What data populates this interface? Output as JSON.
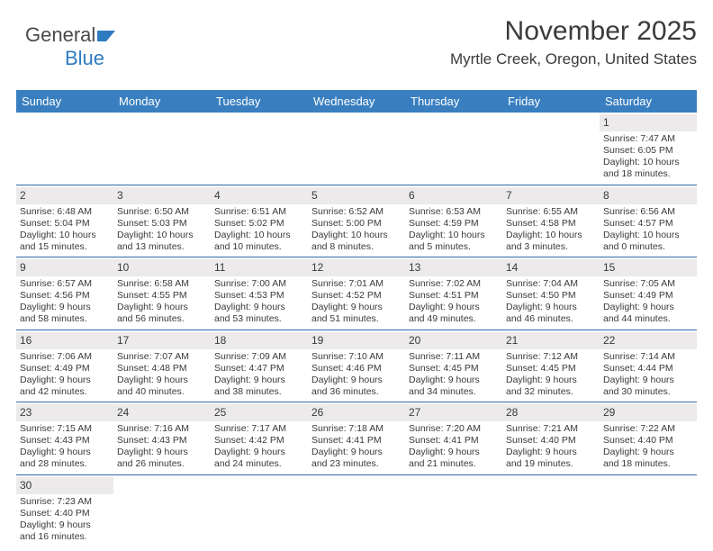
{
  "logo": {
    "text1": "General",
    "text2": "Blue"
  },
  "colors": {
    "header_blue": "#397fc0",
    "border_blue": "#2f6aa8",
    "daynum_bg": "#eceaea",
    "text": "#3a3a3a",
    "logo_blue": "#2f7bbf"
  },
  "title": "November 2025",
  "location": "Myrtle Creek, Oregon, United States",
  "day_labels": [
    "Sunday",
    "Monday",
    "Tuesday",
    "Wednesday",
    "Thursday",
    "Friday",
    "Saturday"
  ],
  "weeks": [
    [
      {
        "empty": true
      },
      {
        "empty": true
      },
      {
        "empty": true
      },
      {
        "empty": true
      },
      {
        "empty": true
      },
      {
        "empty": true
      },
      {
        "n": "1",
        "sr": "Sunrise: 7:47 AM",
        "ss": "Sunset: 6:05 PM",
        "d1": "Daylight: 10 hours",
        "d2": "and 18 minutes."
      }
    ],
    [
      {
        "n": "2",
        "sr": "Sunrise: 6:48 AM",
        "ss": "Sunset: 5:04 PM",
        "d1": "Daylight: 10 hours",
        "d2": "and 15 minutes."
      },
      {
        "n": "3",
        "sr": "Sunrise: 6:50 AM",
        "ss": "Sunset: 5:03 PM",
        "d1": "Daylight: 10 hours",
        "d2": "and 13 minutes."
      },
      {
        "n": "4",
        "sr": "Sunrise: 6:51 AM",
        "ss": "Sunset: 5:02 PM",
        "d1": "Daylight: 10 hours",
        "d2": "and 10 minutes."
      },
      {
        "n": "5",
        "sr": "Sunrise: 6:52 AM",
        "ss": "Sunset: 5:00 PM",
        "d1": "Daylight: 10 hours",
        "d2": "and 8 minutes."
      },
      {
        "n": "6",
        "sr": "Sunrise: 6:53 AM",
        "ss": "Sunset: 4:59 PM",
        "d1": "Daylight: 10 hours",
        "d2": "and 5 minutes."
      },
      {
        "n": "7",
        "sr": "Sunrise: 6:55 AM",
        "ss": "Sunset: 4:58 PM",
        "d1": "Daylight: 10 hours",
        "d2": "and 3 minutes."
      },
      {
        "n": "8",
        "sr": "Sunrise: 6:56 AM",
        "ss": "Sunset: 4:57 PM",
        "d1": "Daylight: 10 hours",
        "d2": "and 0 minutes."
      }
    ],
    [
      {
        "n": "9",
        "sr": "Sunrise: 6:57 AM",
        "ss": "Sunset: 4:56 PM",
        "d1": "Daylight: 9 hours",
        "d2": "and 58 minutes."
      },
      {
        "n": "10",
        "sr": "Sunrise: 6:58 AM",
        "ss": "Sunset: 4:55 PM",
        "d1": "Daylight: 9 hours",
        "d2": "and 56 minutes."
      },
      {
        "n": "11",
        "sr": "Sunrise: 7:00 AM",
        "ss": "Sunset: 4:53 PM",
        "d1": "Daylight: 9 hours",
        "d2": "and 53 minutes."
      },
      {
        "n": "12",
        "sr": "Sunrise: 7:01 AM",
        "ss": "Sunset: 4:52 PM",
        "d1": "Daylight: 9 hours",
        "d2": "and 51 minutes."
      },
      {
        "n": "13",
        "sr": "Sunrise: 7:02 AM",
        "ss": "Sunset: 4:51 PM",
        "d1": "Daylight: 9 hours",
        "d2": "and 49 minutes."
      },
      {
        "n": "14",
        "sr": "Sunrise: 7:04 AM",
        "ss": "Sunset: 4:50 PM",
        "d1": "Daylight: 9 hours",
        "d2": "and 46 minutes."
      },
      {
        "n": "15",
        "sr": "Sunrise: 7:05 AM",
        "ss": "Sunset: 4:49 PM",
        "d1": "Daylight: 9 hours",
        "d2": "and 44 minutes."
      }
    ],
    [
      {
        "n": "16",
        "sr": "Sunrise: 7:06 AM",
        "ss": "Sunset: 4:49 PM",
        "d1": "Daylight: 9 hours",
        "d2": "and 42 minutes."
      },
      {
        "n": "17",
        "sr": "Sunrise: 7:07 AM",
        "ss": "Sunset: 4:48 PM",
        "d1": "Daylight: 9 hours",
        "d2": "and 40 minutes."
      },
      {
        "n": "18",
        "sr": "Sunrise: 7:09 AM",
        "ss": "Sunset: 4:47 PM",
        "d1": "Daylight: 9 hours",
        "d2": "and 38 minutes."
      },
      {
        "n": "19",
        "sr": "Sunrise: 7:10 AM",
        "ss": "Sunset: 4:46 PM",
        "d1": "Daylight: 9 hours",
        "d2": "and 36 minutes."
      },
      {
        "n": "20",
        "sr": "Sunrise: 7:11 AM",
        "ss": "Sunset: 4:45 PM",
        "d1": "Daylight: 9 hours",
        "d2": "and 34 minutes."
      },
      {
        "n": "21",
        "sr": "Sunrise: 7:12 AM",
        "ss": "Sunset: 4:45 PM",
        "d1": "Daylight: 9 hours",
        "d2": "and 32 minutes."
      },
      {
        "n": "22",
        "sr": "Sunrise: 7:14 AM",
        "ss": "Sunset: 4:44 PM",
        "d1": "Daylight: 9 hours",
        "d2": "and 30 minutes."
      }
    ],
    [
      {
        "n": "23",
        "sr": "Sunrise: 7:15 AM",
        "ss": "Sunset: 4:43 PM",
        "d1": "Daylight: 9 hours",
        "d2": "and 28 minutes."
      },
      {
        "n": "24",
        "sr": "Sunrise: 7:16 AM",
        "ss": "Sunset: 4:43 PM",
        "d1": "Daylight: 9 hours",
        "d2": "and 26 minutes."
      },
      {
        "n": "25",
        "sr": "Sunrise: 7:17 AM",
        "ss": "Sunset: 4:42 PM",
        "d1": "Daylight: 9 hours",
        "d2": "and 24 minutes."
      },
      {
        "n": "26",
        "sr": "Sunrise: 7:18 AM",
        "ss": "Sunset: 4:41 PM",
        "d1": "Daylight: 9 hours",
        "d2": "and 23 minutes."
      },
      {
        "n": "27",
        "sr": "Sunrise: 7:20 AM",
        "ss": "Sunset: 4:41 PM",
        "d1": "Daylight: 9 hours",
        "d2": "and 21 minutes."
      },
      {
        "n": "28",
        "sr": "Sunrise: 7:21 AM",
        "ss": "Sunset: 4:40 PM",
        "d1": "Daylight: 9 hours",
        "d2": "and 19 minutes."
      },
      {
        "n": "29",
        "sr": "Sunrise: 7:22 AM",
        "ss": "Sunset: 4:40 PM",
        "d1": "Daylight: 9 hours",
        "d2": "and 18 minutes."
      }
    ],
    [
      {
        "n": "30",
        "sr": "Sunrise: 7:23 AM",
        "ss": "Sunset: 4:40 PM",
        "d1": "Daylight: 9 hours",
        "d2": "and 16 minutes."
      },
      {
        "empty": true
      },
      {
        "empty": true
      },
      {
        "empty": true
      },
      {
        "empty": true
      },
      {
        "empty": true
      },
      {
        "empty": true
      }
    ]
  ]
}
